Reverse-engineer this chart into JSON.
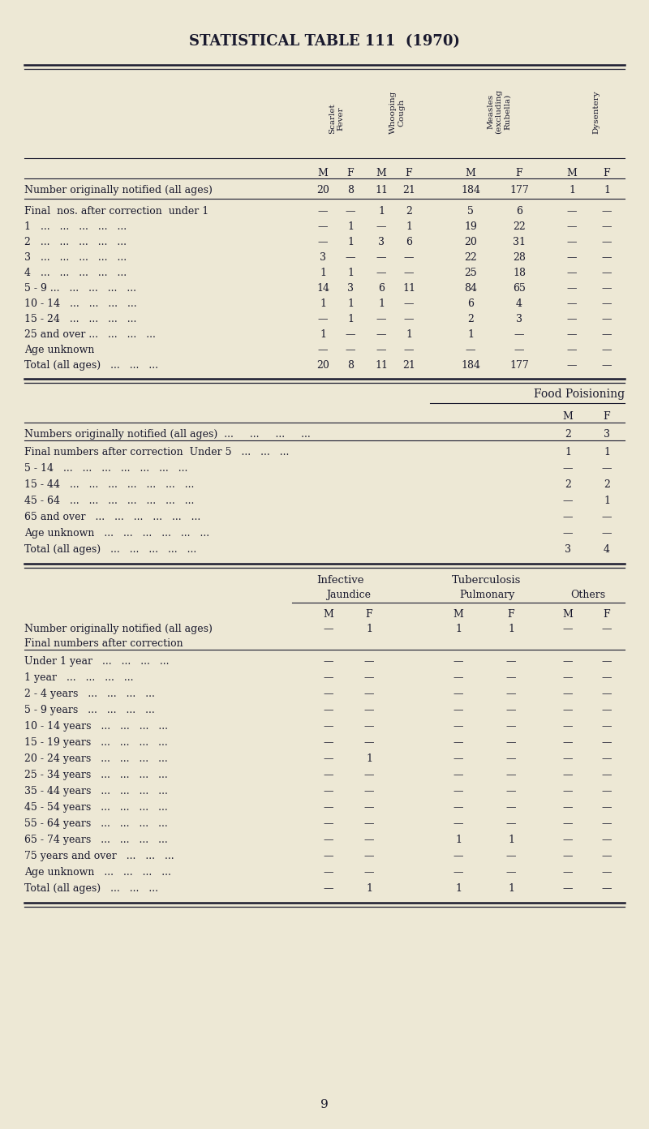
{
  "title": "STATISTICAL TABLE 111  (1970)",
  "bg_color": "#ede8d5",
  "text_color": "#1a1a2e",
  "page_number": "9",
  "section1_col_headers": [
    "Scarlet\nFever",
    "Whooping\nCough",
    "Measles\n(excluding\nRubella)",
    "Dysentery"
  ],
  "section1_subheader": [
    "M",
    "F",
    "M",
    "F",
    "M",
    "F",
    "M",
    "F"
  ],
  "section1_notified_row": [
    "Number originally notified (all ages)",
    "20",
    "8",
    "11",
    "21",
    "184",
    "177",
    "1",
    "1"
  ],
  "section1_rows": [
    [
      "Final  nos. after correction  under 1",
      "—",
      "—",
      "1",
      "2",
      "5",
      "6",
      "—",
      "—"
    ],
    [
      "1   ...   ...   ...   ...   ...",
      "—",
      "1",
      "—",
      "1",
      "19",
      "22",
      "—",
      "—"
    ],
    [
      "2   ...   ...   ...   ...   ...",
      "—",
      "1",
      "3",
      "6",
      "20",
      "31",
      "—",
      "—"
    ],
    [
      "3   ...   ...   ...   ...   ...",
      "3",
      "—",
      "—",
      "—",
      "22",
      "28",
      "—",
      "—"
    ],
    [
      "4   ...   ...   ...   ...   ...",
      "1",
      "1",
      "—",
      "—",
      "25",
      "18",
      "—",
      "—"
    ],
    [
      "5 - 9 ...   ...   ...   ...   ...",
      "14",
      "3",
      "6",
      "11",
      "84",
      "65",
      "—",
      "—"
    ],
    [
      "10 - 14   ...   ...   ...   ...",
      "1",
      "1",
      "1",
      "—",
      "6",
      "4",
      "—",
      "—"
    ],
    [
      "15 - 24   ...   ...   ...   ...",
      "—",
      "1",
      "—",
      "—",
      "2",
      "3",
      "—",
      "—"
    ],
    [
      "25 and over ...   ...   ...   ...",
      "1",
      "—",
      "—",
      "1",
      "1",
      "—",
      "—",
      "—"
    ],
    [
      "Age unknown",
      "—",
      "—",
      "—",
      "—",
      "—",
      "—",
      "—",
      "—"
    ],
    [
      "Total (all ages)   ...   ...   ...",
      "20",
      "8",
      "11",
      "21",
      "184",
      "177",
      "—",
      "—"
    ]
  ],
  "section2_title": "Food Poisioning",
  "section2_notified_row": [
    "Numbers originally notified (all ages)  ...     ...     ...     ...",
    "2",
    "3"
  ],
  "section2_rows": [
    [
      "Final numbers after correction  Under 5   ...   ...   ...",
      "1",
      "1"
    ],
    [
      "5 - 14   ...   ...   ...   ...   ...   ...   ...",
      "—",
      "—"
    ],
    [
      "15 - 44   ...   ...   ...   ...   ...   ...   ...",
      "2",
      "2"
    ],
    [
      "45 - 64   ...   ...   ...   ...   ...   ...   ...",
      "—",
      "1"
    ],
    [
      "65 and over   ...   ...   ...   ...   ...   ...",
      "—",
      "—"
    ],
    [
      "Age unknown   ...   ...   ...   ...   ...   ...",
      "—",
      "—"
    ],
    [
      "Total (all ages)   ...   ...   ...   ...   ...",
      "3",
      "4"
    ]
  ],
  "section3_notified_row": [
    "Number originally notified (all ages)",
    "—",
    "1",
    "1",
    "1",
    "—",
    "—"
  ],
  "section3_correction_label": "Final numbers after correction",
  "section3_rows": [
    [
      "Under 1 year   ...   ...   ...   ...",
      "—",
      "—",
      "—",
      "—",
      "—",
      "—"
    ],
    [
      "1 year   ...   ...   ...   ...",
      "—",
      "—",
      "—",
      "—",
      "—",
      "—"
    ],
    [
      "2 - 4 years   ...   ...   ...   ...",
      "—",
      "—",
      "—",
      "—",
      "—",
      "—"
    ],
    [
      "5 - 9 years   ...   ...   ...   ...",
      "—",
      "—",
      "—",
      "—",
      "—",
      "—"
    ],
    [
      "10 - 14 years   ...   ...   ...   ...",
      "—",
      "—",
      "—",
      "—",
      "—",
      "—"
    ],
    [
      "15 - 19 years   ...   ...   ...   ...",
      "—",
      "—",
      "—",
      "—",
      "—",
      "—"
    ],
    [
      "20 - 24 years   ...   ...   ...   ...",
      "—",
      "1",
      "—",
      "—",
      "—",
      "—"
    ],
    [
      "25 - 34 years   ...   ...   ...   ...",
      "—",
      "—",
      "—",
      "—",
      "—",
      "—"
    ],
    [
      "35 - 44 years   ...   ...   ...   ...",
      "—",
      "—",
      "—",
      "—",
      "—",
      "—"
    ],
    [
      "45 - 54 years   ...   ...   ...   ...",
      "—",
      "—",
      "—",
      "—",
      "—",
      "—"
    ],
    [
      "55 - 64 years   ...   ...   ...   ...",
      "—",
      "—",
      "—",
      "—",
      "—",
      "—"
    ],
    [
      "65 - 74 years   ...   ...   ...   ...",
      "—",
      "—",
      "1",
      "1",
      "—",
      "—"
    ],
    [
      "75 years and over   ...   ...   ...",
      "—",
      "—",
      "—",
      "—",
      "—",
      "—"
    ],
    [
      "Age unknown   ...   ...   ...   ...",
      "—",
      "—",
      "—",
      "—",
      "—",
      "—"
    ],
    [
      "Total (all ages)   ...   ...   ...",
      "—",
      "1",
      "1",
      "1",
      "—",
      "—"
    ]
  ]
}
